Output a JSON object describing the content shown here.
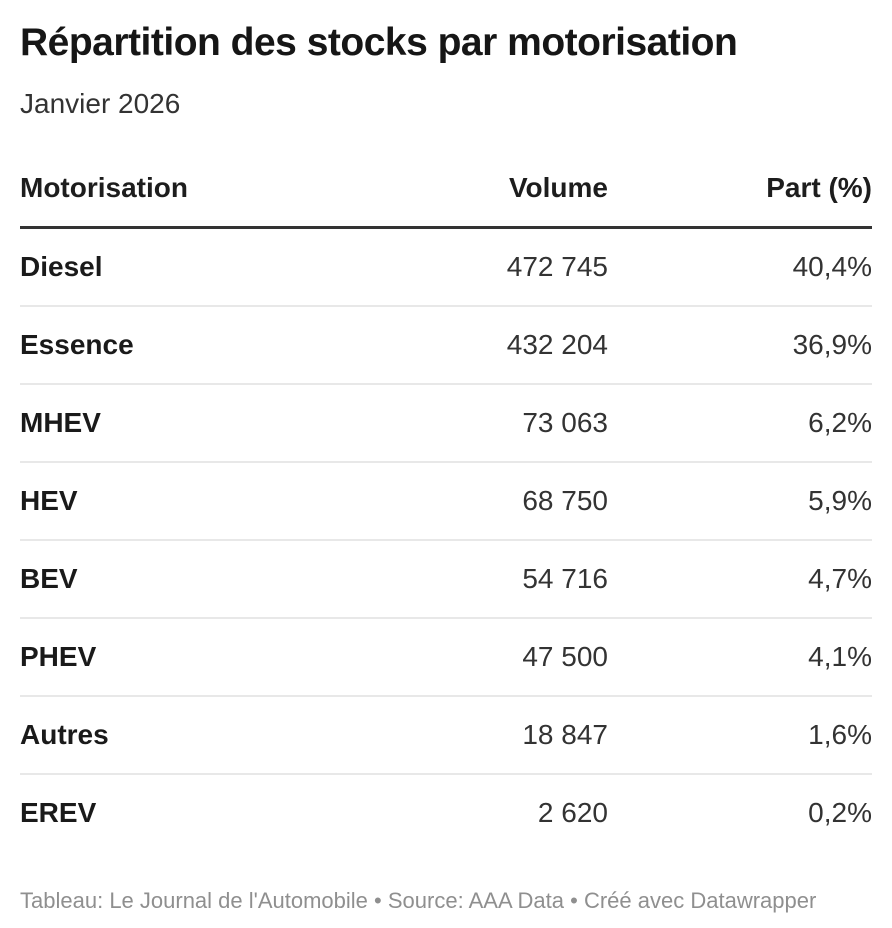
{
  "header": {
    "title": "Répartition des stocks par motorisation",
    "subtitle": "Janvier 2026"
  },
  "table": {
    "columns": [
      "Motorisation",
      "Volume",
      "Part (%)"
    ],
    "rows": [
      {
        "motorisation": "Diesel",
        "volume": "472 745",
        "part": "40,4%"
      },
      {
        "motorisation": "Essence",
        "volume": "432 204",
        "part": "36,9%"
      },
      {
        "motorisation": "MHEV",
        "volume": "73 063",
        "part": "6,2%"
      },
      {
        "motorisation": "HEV",
        "volume": "68 750",
        "part": "5,9%"
      },
      {
        "motorisation": "BEV",
        "volume": "54 716",
        "part": "4,7%"
      },
      {
        "motorisation": "PHEV",
        "volume": "47 500",
        "part": "4,1%"
      },
      {
        "motorisation": "Autres",
        "volume": "18 847",
        "part": "1,6%"
      },
      {
        "motorisation": "EREV",
        "volume": "2 620",
        "part": "0,2%"
      }
    ]
  },
  "footer": {
    "table_label": "Tableau:",
    "byline": "Le Journal de l'Automobile",
    "separator1": "•",
    "source_label": "Source:",
    "source": "AAA Data",
    "separator2": "•",
    "created_label": "Créé avec",
    "creator": "Datawrapper"
  },
  "colors": {
    "title_text": "#161616",
    "body_text": "#333333",
    "header_rule": "#333333",
    "row_divider": "#e8e8e8",
    "footer_text": "#8f8f8f",
    "background": "#ffffff"
  },
  "chart_data": {
    "type": "table",
    "title": "Répartition des stocks par motorisation",
    "subtitle": "Janvier 2026",
    "columns": [
      "Motorisation",
      "Volume",
      "Part (%)"
    ],
    "categories": [
      "Diesel",
      "Essence",
      "MHEV",
      "HEV",
      "BEV",
      "PHEV",
      "Autres",
      "EREV"
    ],
    "series": [
      {
        "name": "Volume",
        "values": [
          472745,
          432204,
          73063,
          68750,
          54716,
          47500,
          18847,
          2620
        ]
      },
      {
        "name": "Part (%)",
        "values": [
          40.4,
          36.9,
          6.2,
          5.9,
          4.7,
          4.1,
          1.6,
          0.2
        ]
      }
    ],
    "number_format": "fr-FR (space thousands separator, comma decimal)",
    "footer": "Tableau: Le Journal de l'Automobile • Source: AAA Data • Créé avec Datawrapper"
  }
}
